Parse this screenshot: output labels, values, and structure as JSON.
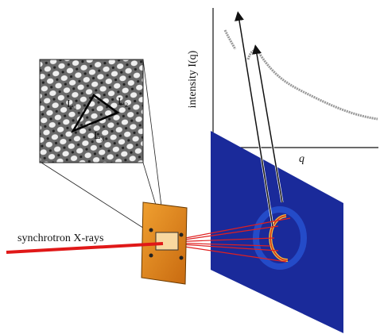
{
  "labels": {
    "beam": "synchrotron X-rays",
    "y_axis": "intensity I(q)",
    "x_axis": "q",
    "lattice": [
      "L₁",
      "L₂",
      "L₃"
    ]
  }
}
